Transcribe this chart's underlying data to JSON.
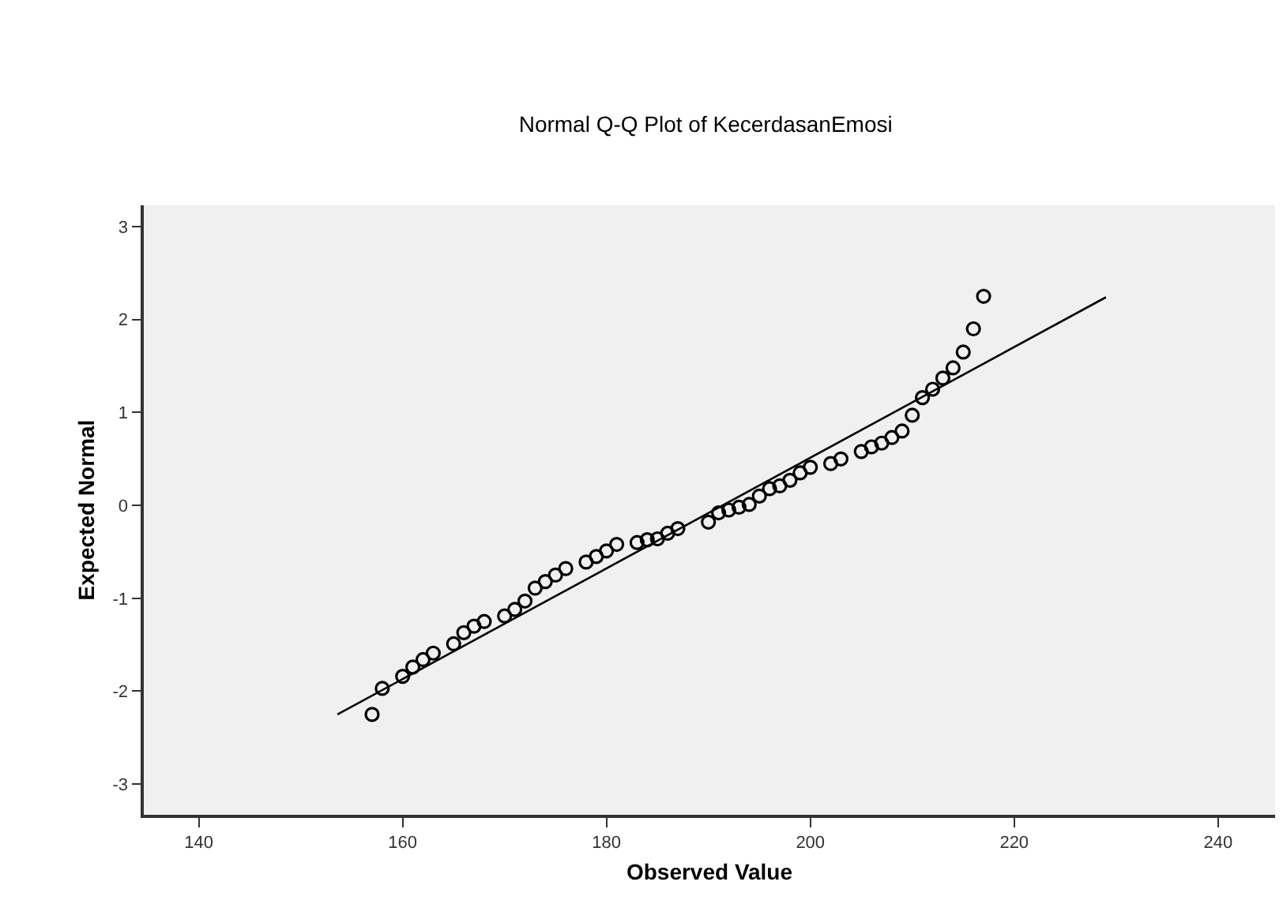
{
  "chart_data": {
    "type": "scatter",
    "title": "Normal Q-Q Plot of KecerdasanEmosi",
    "xlabel": "Observed Value",
    "ylabel": "Expected Normal",
    "series": [
      {
        "color": "#000000",
        "marker": "circle",
        "x": [
          157,
          158,
          160,
          161,
          162,
          163,
          165,
          166,
          167,
          168,
          170,
          171,
          172,
          173,
          174,
          175,
          176,
          178,
          179,
          180,
          181,
          183,
          184,
          185,
          186,
          187,
          190,
          191,
          192,
          193,
          194,
          195,
          196,
          197,
          198,
          199,
          200,
          202,
          203,
          205,
          206,
          207,
          208,
          209,
          210,
          211,
          212,
          213,
          214,
          215,
          216,
          217
        ],
        "values": [
          -2.25,
          -1.97,
          -1.84,
          -1.74,
          -1.66,
          -1.59,
          -1.49,
          -1.37,
          -1.3,
          -1.25,
          -1.19,
          -1.12,
          -1.03,
          -0.89,
          -0.82,
          -0.75,
          -0.68,
          -0.61,
          -0.55,
          -0.49,
          -0.42,
          -0.4,
          -0.37,
          -0.36,
          -0.3,
          -0.25,
          -0.18,
          -0.08,
          -0.05,
          -0.02,
          0.01,
          0.1,
          0.18,
          0.21,
          0.27,
          0.35,
          0.41,
          0.45,
          0.5,
          0.58,
          0.63,
          0.67,
          0.73,
          0.8,
          0.97,
          1.16,
          1.25,
          1.37,
          1.48,
          1.65,
          1.9,
          2.25
        ]
      },
      {
        "type": "line",
        "color": "#000000",
        "line_style": "solid",
        "x": [
          153.6,
          229
        ],
        "values": [
          -2.25,
          2.24
        ]
      }
    ],
    "xlim": [
      134.6,
      245.6
    ],
    "xticks": [
      140,
      160,
      180,
      200,
      220,
      240
    ],
    "ylim": [
      -3.33,
      3.23
    ],
    "yticks": [
      -3,
      -2,
      -1,
      0,
      1,
      2,
      3
    ],
    "grid": false
  }
}
